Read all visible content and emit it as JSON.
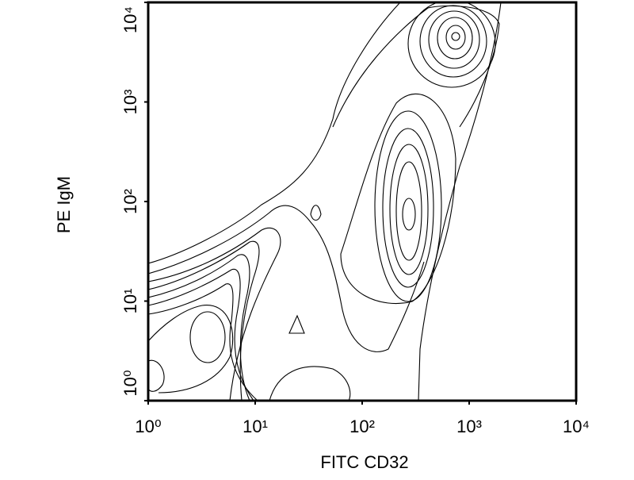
{
  "chart_data": {
    "type": "contour",
    "xlabel": "FITC CD32",
    "ylabel": "PE IgM",
    "xscale": "log",
    "yscale": "log",
    "xlim": [
      1,
      10000
    ],
    "ylim": [
      1,
      10000
    ],
    "xticks": [
      {
        "value": 1,
        "label": "10⁰"
      },
      {
        "value": 10,
        "label": "10¹"
      },
      {
        "value": 100,
        "label": "10²"
      },
      {
        "value": 1000,
        "label": "10³"
      },
      {
        "value": 10000,
        "label": "10⁴"
      }
    ],
    "yticks": [
      {
        "value": 1,
        "label": "10⁰"
      },
      {
        "value": 10,
        "label": "10¹"
      },
      {
        "value": 100,
        "label": "10²"
      },
      {
        "value": 1000,
        "label": "10³"
      },
      {
        "value": 10000,
        "label": "10⁴"
      }
    ],
    "color": "#000000"
  }
}
